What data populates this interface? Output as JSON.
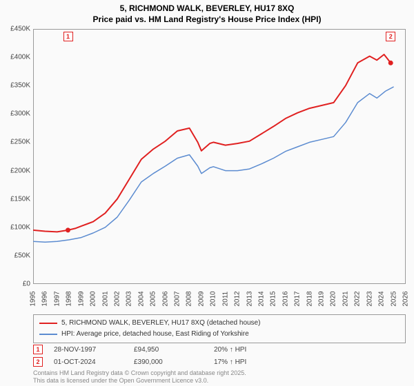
{
  "title": {
    "line1": "5, RICHMOND WALK, BEVERLEY, HU17 8XQ",
    "line2": "Price paid vs. HM Land Registry's House Price Index (HPI)"
  },
  "chart": {
    "type": "line",
    "background_color": "#fafafa",
    "border_color": "#999999",
    "grid": false,
    "ylim": [
      0,
      450
    ],
    "y_unit_prefix": "£",
    "y_unit_suffix": "K",
    "ytick_step": 50,
    "yticks": [
      0,
      50,
      100,
      150,
      200,
      250,
      300,
      350,
      400,
      450
    ],
    "ytick_labels": [
      "£0",
      "£50K",
      "£100K",
      "£150K",
      "£200K",
      "£250K",
      "£300K",
      "£350K",
      "£400K",
      "£450K"
    ],
    "xlim": [
      1995,
      2026
    ],
    "xticks": [
      1995,
      1996,
      1997,
      1998,
      1999,
      2000,
      2001,
      2002,
      2003,
      2004,
      2005,
      2006,
      2007,
      2008,
      2009,
      2010,
      2011,
      2012,
      2013,
      2014,
      2015,
      2016,
      2017,
      2018,
      2019,
      2020,
      2021,
      2022,
      2023,
      2024,
      2025,
      2026
    ],
    "label_fontsize": 10,
    "label_color": "#444444",
    "series": [
      {
        "name": "5, RICHMOND WALK, BEVERLEY, HU17 8XQ (detached house)",
        "color": "#e02020",
        "line_width": 2,
        "points": [
          [
            1995,
            95
          ],
          [
            1996,
            93
          ],
          [
            1997,
            92
          ],
          [
            1997.9,
            94.95
          ],
          [
            1998.5,
            98
          ],
          [
            1999,
            102
          ],
          [
            2000,
            110
          ],
          [
            2001,
            125
          ],
          [
            2002,
            150
          ],
          [
            2003,
            185
          ],
          [
            2004,
            220
          ],
          [
            2005,
            238
          ],
          [
            2006,
            252
          ],
          [
            2007,
            270
          ],
          [
            2008,
            275
          ],
          [
            2008.7,
            250
          ],
          [
            2009,
            235
          ],
          [
            2009.7,
            248
          ],
          [
            2010,
            250
          ],
          [
            2011,
            245
          ],
          [
            2012,
            248
          ],
          [
            2013,
            252
          ],
          [
            2014,
            265
          ],
          [
            2015,
            278
          ],
          [
            2016,
            292
          ],
          [
            2017,
            302
          ],
          [
            2018,
            310
          ],
          [
            2019,
            315
          ],
          [
            2020,
            320
          ],
          [
            2021,
            350
          ],
          [
            2022,
            390
          ],
          [
            2023,
            402
          ],
          [
            2023.6,
            395
          ],
          [
            2024.2,
            405
          ],
          [
            2024.75,
            390
          ]
        ],
        "markers": [
          {
            "id": "1",
            "x": 1997.9,
            "y": 94.95
          },
          {
            "id": "2",
            "x": 2024.75,
            "y": 390
          }
        ]
      },
      {
        "name": "HPI: Average price, detached house, East Riding of Yorkshire",
        "color": "#5b8bd0",
        "line_width": 1.5,
        "points": [
          [
            1995,
            75
          ],
          [
            1996,
            74
          ],
          [
            1997,
            75
          ],
          [
            1998,
            78
          ],
          [
            1999,
            82
          ],
          [
            2000,
            90
          ],
          [
            2001,
            100
          ],
          [
            2002,
            118
          ],
          [
            2003,
            148
          ],
          [
            2004,
            180
          ],
          [
            2005,
            195
          ],
          [
            2006,
            208
          ],
          [
            2007,
            222
          ],
          [
            2008,
            228
          ],
          [
            2008.7,
            208
          ],
          [
            2009,
            195
          ],
          [
            2009.7,
            205
          ],
          [
            2010,
            207
          ],
          [
            2011,
            200
          ],
          [
            2012,
            200
          ],
          [
            2013,
            203
          ],
          [
            2014,
            212
          ],
          [
            2015,
            222
          ],
          [
            2016,
            234
          ],
          [
            2017,
            242
          ],
          [
            2018,
            250
          ],
          [
            2019,
            255
          ],
          [
            2020,
            260
          ],
          [
            2021,
            285
          ],
          [
            2022,
            320
          ],
          [
            2023,
            336
          ],
          [
            2023.6,
            328
          ],
          [
            2024.3,
            340
          ],
          [
            2025,
            348
          ]
        ]
      }
    ],
    "badges_on_axis": [
      {
        "id": "1",
        "x": 1997.9
      },
      {
        "id": "2",
        "x": 2024.75
      }
    ]
  },
  "legend": {
    "border_color": "#999999",
    "items": [
      {
        "color": "#e02020",
        "label": "5, RICHMOND WALK, BEVERLEY, HU17 8XQ (detached house)"
      },
      {
        "color": "#5b8bd0",
        "label": "HPI: Average price, detached house, East Riding of Yorkshire"
      }
    ]
  },
  "data_rows": [
    {
      "badge": "1",
      "date": "28-NOV-1997",
      "price": "£94,950",
      "delta": "20% ↑ HPI"
    },
    {
      "badge": "2",
      "date": "01-OCT-2024",
      "price": "£390,000",
      "delta": "17% ↑ HPI"
    }
  ],
  "footer": {
    "line1": "Contains HM Land Registry data © Crown copyright and database right 2025.",
    "line2": "This data is licensed under the Open Government Licence v3.0."
  }
}
